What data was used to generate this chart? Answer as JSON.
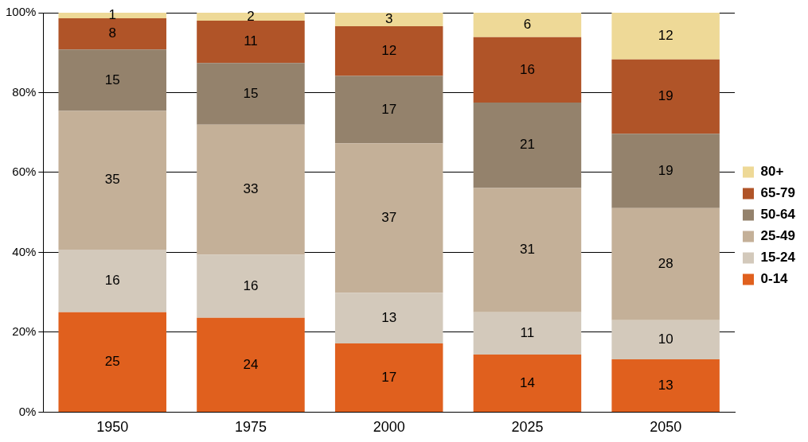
{
  "chart_data": {
    "type": "bar",
    "stacked": true,
    "categories": [
      "1950",
      "1975",
      "2000",
      "2025",
      "2050"
    ],
    "series": [
      {
        "name": "0-14",
        "color": "#e0601e",
        "values": [
          25.0,
          23.6,
          17.2,
          14.4,
          13.2
        ],
        "value_labels": [
          "25",
          "24",
          "17",
          "14",
          "13"
        ]
      },
      {
        "name": "15-24",
        "color": "#d3c9bb",
        "values": [
          15.7,
          15.8,
          12.7,
          10.6,
          9.8
        ],
        "value_labels": [
          "16",
          "16",
          "13",
          "11",
          "10"
        ]
      },
      {
        "name": "25-49",
        "color": "#c4b098",
        "values": [
          34.7,
          32.6,
          37.4,
          31.1,
          28.1
        ],
        "value_labels": [
          "35",
          "33",
          "37",
          "31",
          "28"
        ]
      },
      {
        "name": "50-64",
        "color": "#94826c",
        "values": [
          15.4,
          15.4,
          16.9,
          21.4,
          18.6
        ],
        "value_labels": [
          "15",
          "15",
          "17",
          "21",
          "19"
        ]
      },
      {
        "name": "65-79",
        "color": "#b05428",
        "values": [
          7.8,
          10.6,
          12.4,
          16.4,
          18.6
        ],
        "value_labels": [
          "8",
          "11",
          "12",
          "16",
          "19"
        ]
      },
      {
        "name": "80+",
        "color": "#eed997",
        "values": [
          1.4,
          2.0,
          3.4,
          6.1,
          11.7
        ],
        "value_labels": [
          "1",
          "2",
          "3",
          "6",
          "12"
        ]
      }
    ],
    "ylim": [
      0,
      100
    ],
    "yticks": [
      {
        "value": 0,
        "label": "0%"
      },
      {
        "value": 20,
        "label": "20%"
      },
      {
        "value": 40,
        "label": "40%"
      },
      {
        "value": 60,
        "label": "60%"
      },
      {
        "value": 80,
        "label": "80%"
      },
      {
        "value": 100,
        "label": "100%"
      }
    ],
    "grid": "y",
    "legend": "right"
  }
}
